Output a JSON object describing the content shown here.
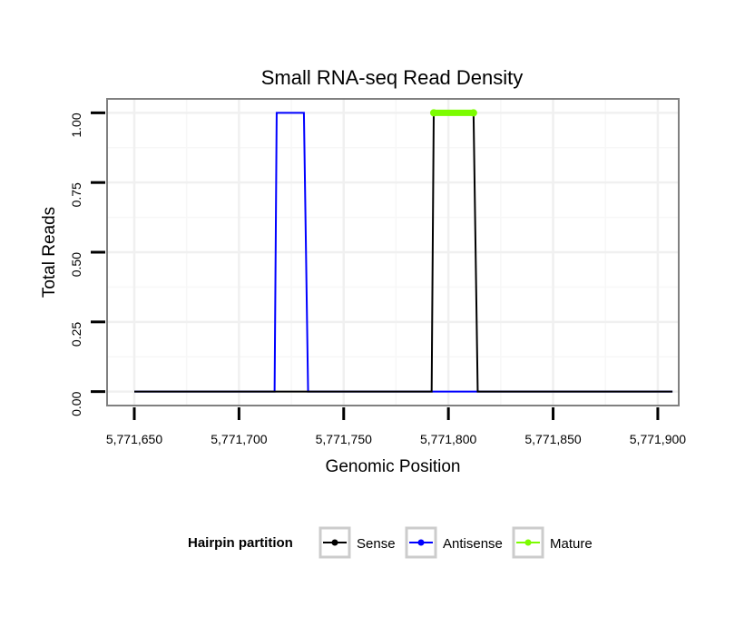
{
  "chart_data": {
    "type": "line",
    "title": "Small RNA-seq Read Density",
    "xlabel": "Genomic Position",
    "ylabel": "Total Reads",
    "xlim": [
      5771637,
      5771910
    ],
    "ylim": [
      -0.05,
      1.05
    ],
    "x_ticks": [
      5771650,
      5771700,
      5771750,
      5771800,
      5771850,
      5771900
    ],
    "x_tick_labels": [
      "5,771,650",
      "5,771,700",
      "5,771,750",
      "5,771,800",
      "5,771,850",
      "5,771,900"
    ],
    "y_ticks": [
      0,
      0.25,
      0.5,
      0.75,
      1.0
    ],
    "y_tick_labels": [
      "0.00",
      "0.25",
      "0.50",
      "0.75",
      "1.00"
    ],
    "grid": true,
    "legend": {
      "title": "Hairpin partition",
      "position": "bottom",
      "entries": [
        "Sense",
        "Antisense",
        "Mature"
      ]
    },
    "series": [
      {
        "name": "Sense",
        "color": "#000000",
        "x": [
          5771650,
          5771792,
          5771793,
          5771812,
          5771814,
          5771907
        ],
        "y": [
          0,
          0,
          1,
          1,
          0,
          0
        ]
      },
      {
        "name": "Antisense",
        "color": "#0000ff",
        "x": [
          5771650,
          5771717,
          5771718,
          5771731,
          5771733,
          5771792,
          5771814,
          5771907
        ],
        "y": [
          0,
          0,
          1,
          1,
          0,
          0,
          0,
          0
        ]
      },
      {
        "name": "Mature",
        "color": "#7cfc00",
        "x": [
          5771793,
          5771812
        ],
        "y": [
          1,
          1
        ]
      }
    ]
  }
}
